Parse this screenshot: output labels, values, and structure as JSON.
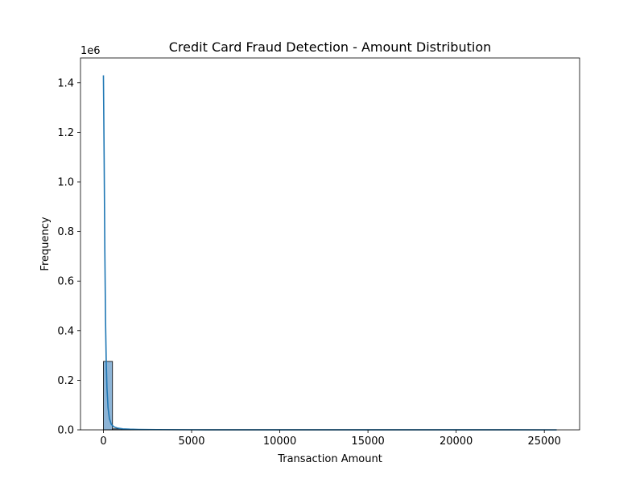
{
  "chart_data": {
    "type": "histogram",
    "title": "Credit Card Fraud Detection - Amount Distribution",
    "xlabel": "Transaction Amount",
    "ylabel": "Frequency",
    "y_offset_label": "1e6",
    "xlim": [
      -1300,
      27000
    ],
    "ylim": [
      0,
      1.5
    ],
    "xticks": [
      0,
      5000,
      10000,
      15000,
      20000,
      25000
    ],
    "xtick_labels": [
      "0",
      "5000",
      "10000",
      "15000",
      "20000",
      "25000"
    ],
    "yticks": [
      0.0,
      0.2,
      0.4,
      0.6,
      0.8,
      1.0,
      1.2,
      1.4
    ],
    "ytick_labels": [
      "0.0",
      "0.2",
      "0.4",
      "0.6",
      "0.8",
      "1.0",
      "1.2",
      "1.4"
    ],
    "bin_width": 514,
    "bins": [
      {
        "x0": 0,
        "x1": 514,
        "value": 0.276
      },
      {
        "x0": 514,
        "x1": 1028,
        "value": 0.004
      },
      {
        "x0": 1028,
        "x1": 1542,
        "value": 0.0008
      },
      {
        "x0": 1542,
        "x1": 2056,
        "value": 0.0003
      },
      {
        "x0": 2056,
        "x1": 2570,
        "value": 0.0001
      }
    ],
    "kde": {
      "x": [
        0,
        40,
        80,
        120,
        160,
        200,
        260,
        340,
        450,
        600,
        800,
        1100,
        1500,
        2000,
        3000,
        5000,
        10000,
        15000,
        20000,
        25700
      ],
      "y": [
        1.43,
        1.1,
        0.72,
        0.44,
        0.27,
        0.17,
        0.09,
        0.045,
        0.022,
        0.012,
        0.007,
        0.004,
        0.0025,
        0.0015,
        0.0008,
        0.0004,
        0.0002,
        0.0001,
        5e-05,
        2e-05
      ]
    },
    "colors": {
      "bar_fill": "#8db4d6",
      "bar_edge": "#000000",
      "kde_line": "#1f77b4",
      "axes": "#000000"
    },
    "grid": false,
    "legend": "none"
  }
}
